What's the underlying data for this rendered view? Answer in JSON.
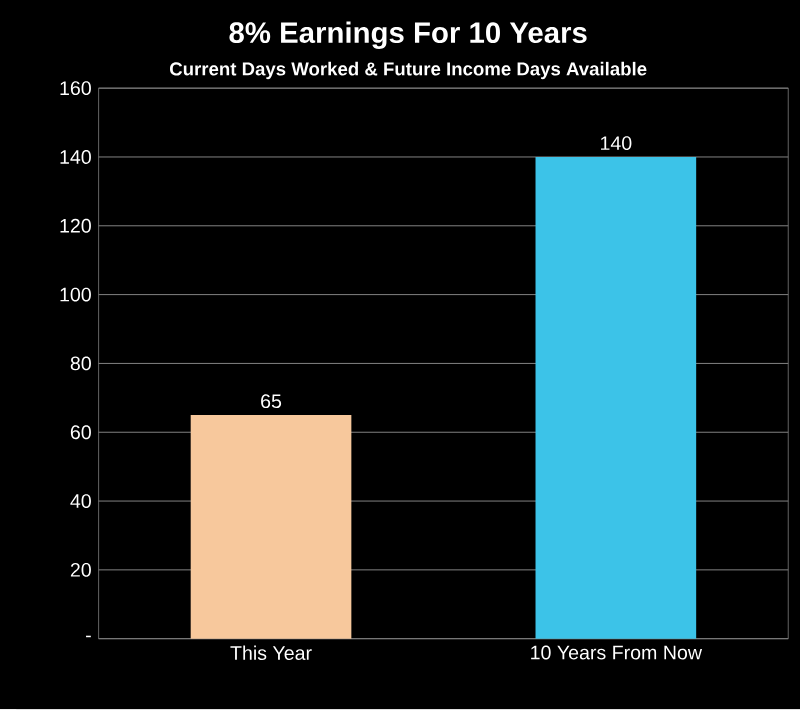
{
  "chart_data": {
    "type": "bar",
    "title": "8% Earnings For 10 Years",
    "subtitle": "Current Days Worked & Future Income Days Available",
    "categories": [
      "This Year",
      "10 Years From Now"
    ],
    "values": [
      65,
      140
    ],
    "colors": [
      "#f7c89c",
      "#3cc3e8"
    ],
    "ylim": [
      0,
      160
    ],
    "yticks": [
      {
        "value": 0,
        "label": "-"
      },
      20,
      40,
      60,
      80,
      100,
      120,
      140,
      160
    ],
    "grid": "y",
    "data_labels": true
  }
}
